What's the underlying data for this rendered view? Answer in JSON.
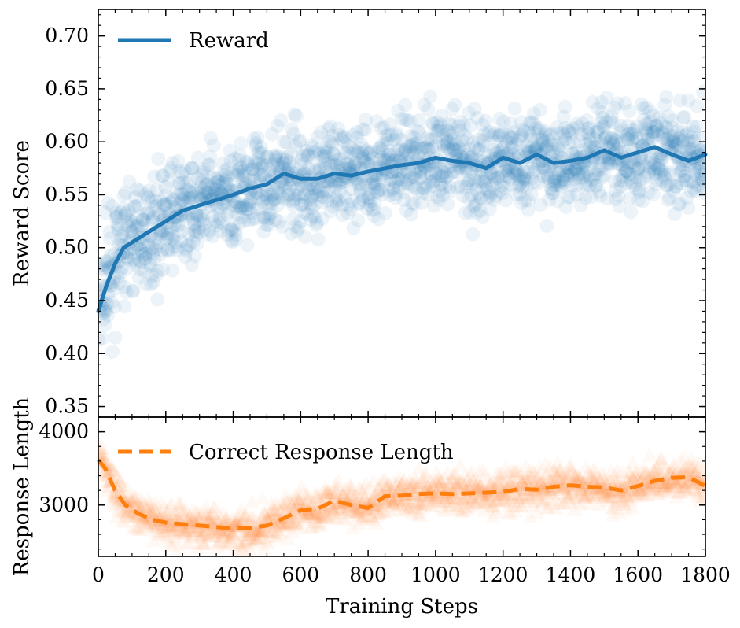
{
  "chart_data": [
    {
      "type": "line",
      "panel": "top",
      "title": "",
      "xlabel": "",
      "ylabel": "Reward Score",
      "xlim": [
        0,
        1800
      ],
      "ylim": [
        0.34,
        0.725
      ],
      "yticks": [
        0.35,
        0.4,
        0.45,
        0.5,
        0.55,
        0.6,
        0.65,
        0.7
      ],
      "ytick_labels": [
        "0.35",
        "0.40",
        "0.45",
        "0.50",
        "0.55",
        "0.60",
        "0.65",
        "0.70"
      ],
      "legend": "top-left",
      "series": [
        {
          "name": "Reward",
          "style": "solid",
          "color": "#1f77b4",
          "x": [
            0,
            25,
            50,
            75,
            100,
            150,
            200,
            250,
            300,
            350,
            400,
            450,
            500,
            550,
            600,
            650,
            700,
            750,
            800,
            850,
            900,
            950,
            1000,
            1050,
            1100,
            1150,
            1200,
            1250,
            1300,
            1350,
            1400,
            1450,
            1500,
            1550,
            1600,
            1650,
            1700,
            1750,
            1800
          ],
          "y": [
            0.44,
            0.465,
            0.485,
            0.5,
            0.505,
            0.515,
            0.525,
            0.535,
            0.54,
            0.545,
            0.55,
            0.556,
            0.56,
            0.57,
            0.565,
            0.565,
            0.57,
            0.568,
            0.572,
            0.575,
            0.578,
            0.58,
            0.585,
            0.582,
            0.58,
            0.575,
            0.585,
            0.58,
            0.588,
            0.58,
            0.582,
            0.585,
            0.592,
            0.585,
            0.59,
            0.595,
            0.588,
            0.582,
            0.588
          ]
        }
      ],
      "scatter_note": "Noisy per-step reward samples (semi-transparent markers) around the smoothed line"
    },
    {
      "type": "line",
      "panel": "bottom",
      "title": "",
      "xlabel": "Training Steps",
      "ylabel": "Response Length",
      "xlim": [
        0,
        1800
      ],
      "ylim": [
        2300,
        4200
      ],
      "xticks": [
        0,
        200,
        400,
        600,
        800,
        1000,
        1200,
        1400,
        1600,
        1800
      ],
      "xtick_labels": [
        "0",
        "200",
        "400",
        "600",
        "800",
        "1000",
        "1200",
        "1400",
        "1600",
        "1800"
      ],
      "yticks": [
        3000,
        4000
      ],
      "ytick_labels": [
        "3000",
        "4000"
      ],
      "legend": "top-left",
      "series": [
        {
          "name": "Correct Response Length",
          "style": "dashed",
          "color": "#ff7f0e",
          "x": [
            0,
            20,
            50,
            80,
            120,
            160,
            200,
            250,
            300,
            350,
            400,
            450,
            500,
            550,
            600,
            650,
            700,
            750,
            800,
            850,
            900,
            950,
            1000,
            1050,
            1100,
            1150,
            1200,
            1250,
            1300,
            1350,
            1400,
            1450,
            1500,
            1550,
            1600,
            1650,
            1700,
            1750,
            1800
          ],
          "y": [
            3620,
            3500,
            3200,
            3000,
            2880,
            2800,
            2760,
            2740,
            2720,
            2700,
            2680,
            2690,
            2720,
            2820,
            2930,
            2950,
            3060,
            3000,
            2960,
            3120,
            3130,
            3150,
            3160,
            3150,
            3160,
            3170,
            3180,
            3220,
            3210,
            3250,
            3270,
            3250,
            3240,
            3200,
            3260,
            3330,
            3370,
            3380,
            3260
          ]
        }
      ],
      "scatter_note": "Noisy per-step length samples (semi-transparent triangle markers) around the smoothed line"
    }
  ],
  "colors": {
    "reward": "#1f77b4",
    "length": "#ff7f0e"
  }
}
